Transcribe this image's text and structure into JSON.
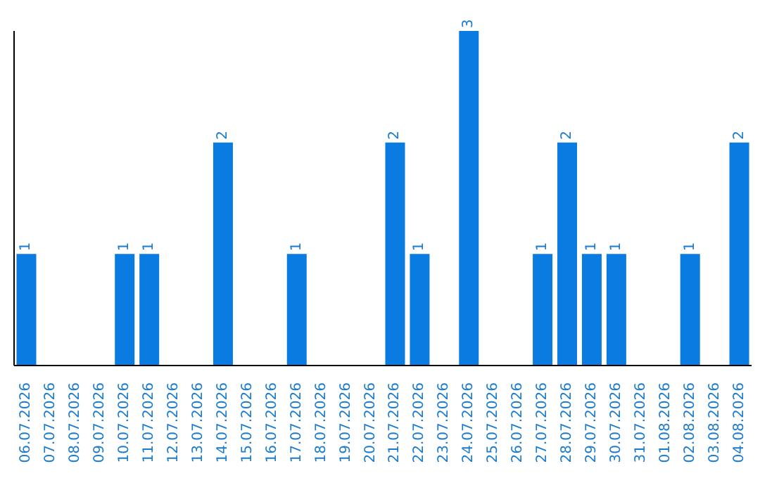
{
  "chart_data": {
    "type": "bar",
    "categories": [
      "06.07.2026",
      "07.07.2026",
      "08.07.2026",
      "09.07.2026",
      "10.07.2026",
      "11.07.2026",
      "12.07.2026",
      "13.07.2026",
      "14.07.2026",
      "15.07.2026",
      "16.07.2026",
      "17.07.2026",
      "18.07.2026",
      "19.07.2026",
      "20.07.2026",
      "21.07.2026",
      "22.07.2026",
      "23.07.2026",
      "24.07.2026",
      "25.07.2026",
      "26.07.2026",
      "27.07.2026",
      "28.07.2026",
      "29.07.2026",
      "30.07.2026",
      "31.07.2026",
      "01.08.2026",
      "02.08.2026",
      "03.08.2026",
      "04.08.2026"
    ],
    "values": [
      1,
      0,
      0,
      0,
      1,
      1,
      0,
      0,
      2,
      0,
      0,
      1,
      0,
      0,
      0,
      2,
      1,
      0,
      3,
      0,
      0,
      1,
      2,
      1,
      1,
      0,
      0,
      1,
      0,
      2
    ],
    "value_labels": [
      "1",
      null,
      null,
      null,
      "1",
      "1",
      null,
      null,
      "2",
      null,
      null,
      "1",
      null,
      null,
      null,
      "2",
      "1",
      null,
      "3",
      null,
      null,
      "1",
      "2",
      "1",
      "1",
      null,
      null,
      "1",
      null,
      "2"
    ],
    "color": "#0a7be0",
    "relative": false,
    "grid": false,
    "legend": false
  }
}
